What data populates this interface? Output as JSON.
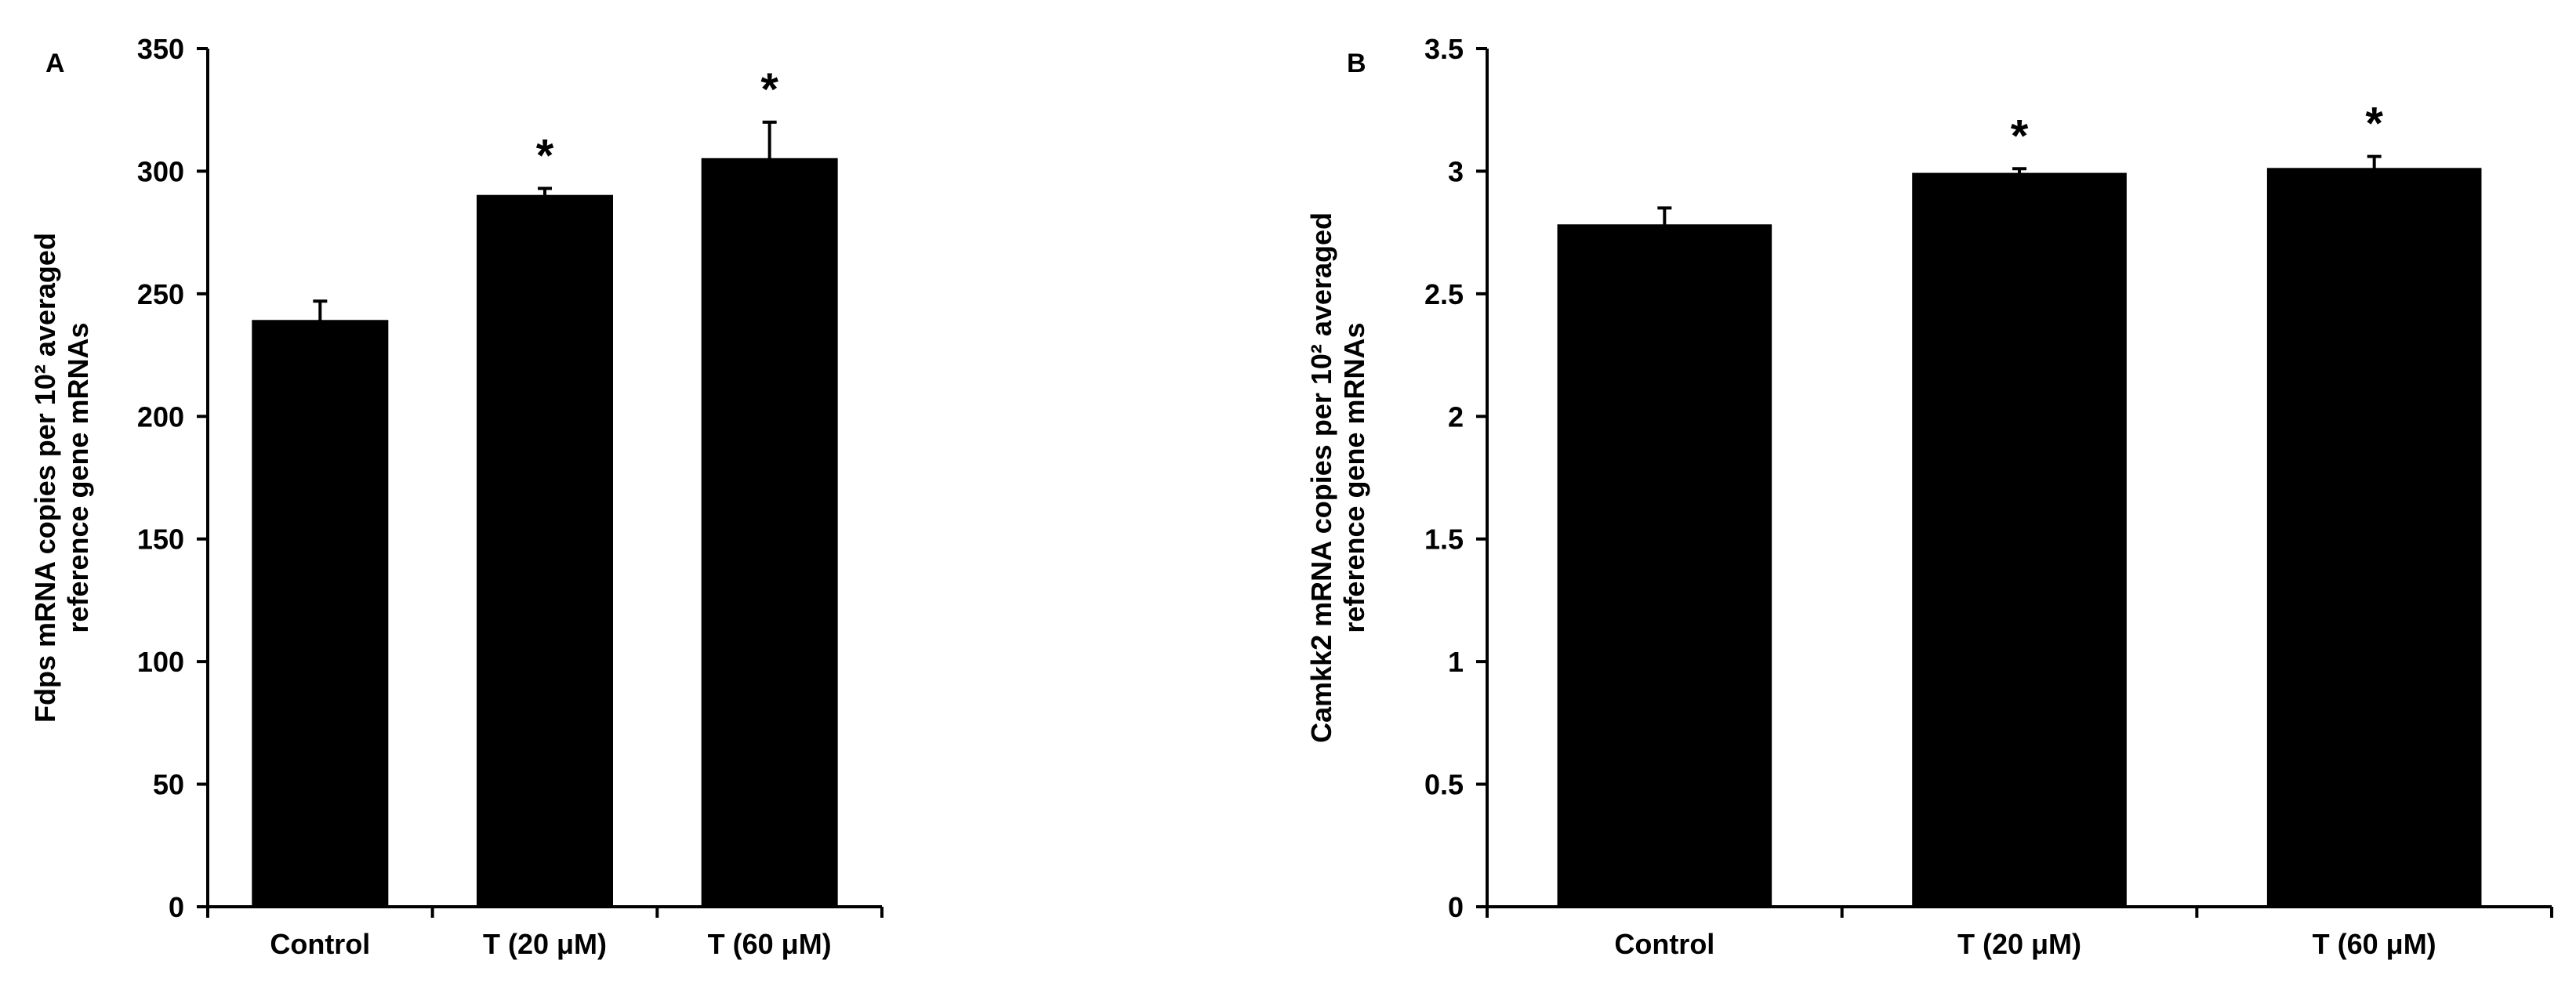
{
  "chart_data": [
    {
      "type": "bar",
      "panel_label": "A",
      "categories": [
        "Control",
        "T (20 μM)",
        "T (60 μM)"
      ],
      "values": [
        239,
        290,
        305
      ],
      "errors": [
        8,
        3,
        15
      ],
      "significance": [
        "",
        "*",
        "*"
      ],
      "ylabel_line1": "Fdps mRNA copies per 10² averaged",
      "ylabel_line2": "reference gene mRNAs",
      "ylim": [
        0,
        350
      ],
      "yticks": [
        0,
        50,
        100,
        150,
        200,
        250,
        300,
        350
      ],
      "ytick_labels": [
        "0",
        "50",
        "100",
        "150",
        "200",
        "250",
        "300",
        "350"
      ],
      "bar_color": "#000000"
    },
    {
      "type": "bar",
      "panel_label": "B",
      "categories": [
        "Control",
        "T (20 μM)",
        "T (60 μM)"
      ],
      "values": [
        2.78,
        2.99,
        3.01
      ],
      "errors": [
        0.07,
        0.02,
        0.05
      ],
      "significance": [
        "",
        "*",
        "*"
      ],
      "ylabel_line1": "Camkk2  mRNA copies per 10² averaged",
      "ylabel_line2": "reference gene mRNAs",
      "ylim": [
        0,
        3.5
      ],
      "yticks": [
        0,
        0.5,
        1,
        1.5,
        2,
        2.5,
        3,
        3.5
      ],
      "ytick_labels": [
        "0",
        "0.5",
        "1",
        "1.5",
        "2",
        "2.5",
        "3",
        "3.5"
      ],
      "bar_color": "#000000"
    }
  ]
}
